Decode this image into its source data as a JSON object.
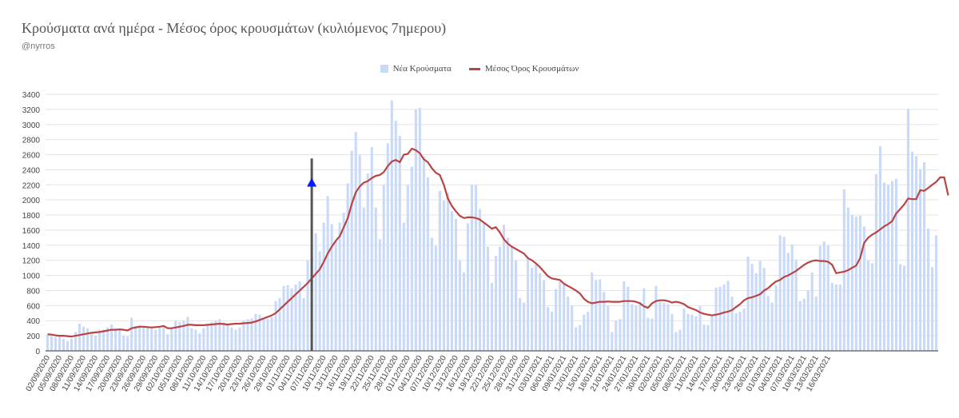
{
  "header": {
    "title": "Κρούσματα ανά ημέρα - Μέσος όρος κρουσμάτων (κυλιόμενος 7ημερου)",
    "subtitle": "@nyrros"
  },
  "colors": {
    "bar": "#c9daf8",
    "line": "#b94443",
    "marker": "#0b1bff",
    "cursor": "#555555",
    "grid": "#e3e3e3",
    "axis": "#333333"
  },
  "chart_data": {
    "type": "bar",
    "title": "Κρούσματα ανά ημέρα - Μέσος όρος κρουσμάτων (κυλιόμενος 7ημερου)",
    "xlabel": "",
    "ylabel": "",
    "ylim": [
      0,
      3400
    ],
    "yticks": [
      0,
      200,
      400,
      600,
      800,
      1000,
      1200,
      1400,
      1600,
      1800,
      2000,
      2200,
      2400,
      2600,
      2800,
      3000,
      3200,
      3400
    ],
    "grid": true,
    "legend_position": "top-center",
    "x_start": "02/09/2020",
    "x_tick_labels": [
      "02/09/2020",
      "05/09/2020",
      "08/09/2020",
      "11/09/2020",
      "14/09/2020",
      "17/09/2020",
      "20/09/2020",
      "23/09/2020",
      "26/09/2020",
      "29/09/2020",
      "02/10/2020",
      "05/10/2020",
      "08/10/2020",
      "11/10/2020",
      "14/10/2020",
      "17/10/2020",
      "20/10/2020",
      "23/10/2020",
      "26/10/2020",
      "29/10/2020",
      "01/11/2020",
      "04/11/2020",
      "07/11/2020",
      "10/11/2020",
      "13/11/2020",
      "16/11/2020",
      "19/11/2020",
      "22/11/2020",
      "25/11/2020",
      "28/11/2020",
      "01/12/2020",
      "04/12/2020",
      "07/12/2020",
      "10/12/2020",
      "13/12/2020",
      "16/12/2020",
      "19/12/2020",
      "22/12/2020",
      "25/12/2020",
      "28/12/2020",
      "31/12/2020",
      "03/01/2021",
      "06/01/2021",
      "09/01/2021",
      "12/01/2021",
      "15/01/2021",
      "18/01/2021",
      "21/01/2021",
      "24/01/2021",
      "27/01/2021",
      "30/01/2021",
      "02/02/2021",
      "05/02/2021",
      "08/02/2021",
      "11/02/2021",
      "14/02/2021",
      "17/02/2021",
      "20/02/2021",
      "23/02/2021",
      "26/02/2021",
      "01/03/2021",
      "04/03/2021",
      "07/03/2021",
      "10/03/2021",
      "13/03/2021",
      "16/03/2021"
    ],
    "marker": {
      "date": "07/11/2020",
      "value": 2230,
      "cursor_top": 2550
    },
    "series": [
      {
        "name": "Νέα Κρούσματα",
        "type": "bar",
        "values": [
          210,
          190,
          180,
          210,
          160,
          130,
          160,
          250,
          360,
          320,
          300,
          250,
          200,
          280,
          280,
          310,
          350,
          300,
          280,
          200,
          190,
          440,
          330,
          340,
          330,
          310,
          320,
          280,
          310,
          330,
          220,
          300,
          400,
          380,
          400,
          450,
          300,
          280,
          230,
          300,
          350,
          380,
          400,
          420,
          380,
          350,
          310,
          280,
          310,
          400,
          420,
          430,
          490,
          480,
          440,
          420,
          450,
          660,
          700,
          860,
          870,
          830,
          880,
          920,
          700,
          1200,
          1260,
          1560,
          1320,
          1700,
          2050,
          1680,
          1450,
          1700,
          1830,
          2220,
          2650,
          2900,
          2600,
          1900,
          2350,
          2700,
          1900,
          1480,
          2200,
          2750,
          3320,
          3050,
          2850,
          1700,
          2200,
          2440,
          3200,
          3220,
          2580,
          2300,
          1500,
          1390,
          2120,
          1990,
          2100,
          1850,
          1750,
          1200,
          1040,
          1690,
          2200,
          2200,
          1880,
          1700,
          1380,
          900,
          1260,
          1380,
          1670,
          1500,
          1380,
          1200,
          700,
          640,
          1230,
          1100,
          1150,
          1030,
          940,
          580,
          520,
          820,
          920,
          880,
          720,
          600,
          310,
          340,
          480,
          520,
          1040,
          940,
          950,
          780,
          600,
          250,
          400,
          420,
          920,
          850,
          620,
          600,
          650,
          830,
          440,
          430,
          860,
          650,
          640,
          620,
          490,
          250,
          280,
          560,
          490,
          480,
          460,
          590,
          350,
          340,
          460,
          840,
          850,
          880,
          930,
          720,
          500,
          520,
          560,
          1250,
          1150,
          1030,
          1190,
          1100,
          730,
          640,
          870,
          1530,
          1510,
          1300,
          1410,
          1210,
          660,
          690,
          800,
          1040,
          720,
          1390,
          1450,
          1400,
          900,
          880,
          880,
          2140,
          1900,
          1800,
          1780,
          1790,
          1650,
          1200,
          1160,
          2340,
          2710,
          2230,
          2200,
          2250,
          2280,
          1150,
          1130,
          3210,
          2640,
          2580,
          2410,
          2500,
          1620,
          1110,
          1530
        ]
      },
      {
        "name": "Μέσος Όρος Κρουσμάτων",
        "type": "line",
        "values": [
          220,
          215,
          205,
          200,
          200,
          195,
          190,
          200,
          210,
          220,
          230,
          240,
          245,
          250,
          260,
          270,
          280,
          280,
          285,
          280,
          270,
          300,
          310,
          320,
          320,
          315,
          310,
          315,
          320,
          330,
          300,
          300,
          310,
          320,
          330,
          345,
          345,
          340,
          340,
          340,
          345,
          350,
          355,
          360,
          355,
          350,
          355,
          360,
          360,
          365,
          370,
          375,
          390,
          410,
          430,
          450,
          470,
          500,
          550,
          600,
          650,
          700,
          750,
          800,
          850,
          900,
          960,
          1020,
          1080,
          1180,
          1290,
          1380,
          1460,
          1520,
          1640,
          1760,
          1950,
          2100,
          2180,
          2230,
          2250,
          2290,
          2320,
          2330,
          2370,
          2450,
          2510,
          2530,
          2500,
          2600,
          2610,
          2680,
          2660,
          2620,
          2540,
          2500,
          2420,
          2360,
          2330,
          2200,
          2020,
          1920,
          1850,
          1790,
          1760,
          1770,
          1770,
          1760,
          1740,
          1700,
          1660,
          1620,
          1640,
          1570,
          1480,
          1420,
          1380,
          1350,
          1320,
          1290,
          1230,
          1200,
          1160,
          1110,
          1050,
          990,
          960,
          950,
          940,
          890,
          860,
          830,
          800,
          760,
          690,
          650,
          630,
          640,
          650,
          650,
          655,
          650,
          650,
          650,
          660,
          660,
          660,
          650,
          630,
          590,
          570,
          630,
          660,
          670,
          670,
          660,
          640,
          650,
          640,
          620,
          580,
          560,
          540,
          510,
          490,
          480,
          470,
          480,
          490,
          510,
          520,
          540,
          580,
          620,
          670,
          700,
          710,
          730,
          750,
          800,
          830,
          880,
          920,
          940,
          980,
          1000,
          1030,
          1060,
          1100,
          1140,
          1170,
          1190,
          1200,
          1190,
          1190,
          1180,
          1140,
          1030,
          1040,
          1050,
          1070,
          1100,
          1130,
          1230,
          1430,
          1500,
          1540,
          1570,
          1610,
          1650,
          1680,
          1720,
          1820,
          1880,
          1940,
          2020,
          2010,
          2010,
          2130,
          2120,
          2160,
          2200,
          2240,
          2300,
          2300,
          2060
        ]
      }
    ]
  }
}
